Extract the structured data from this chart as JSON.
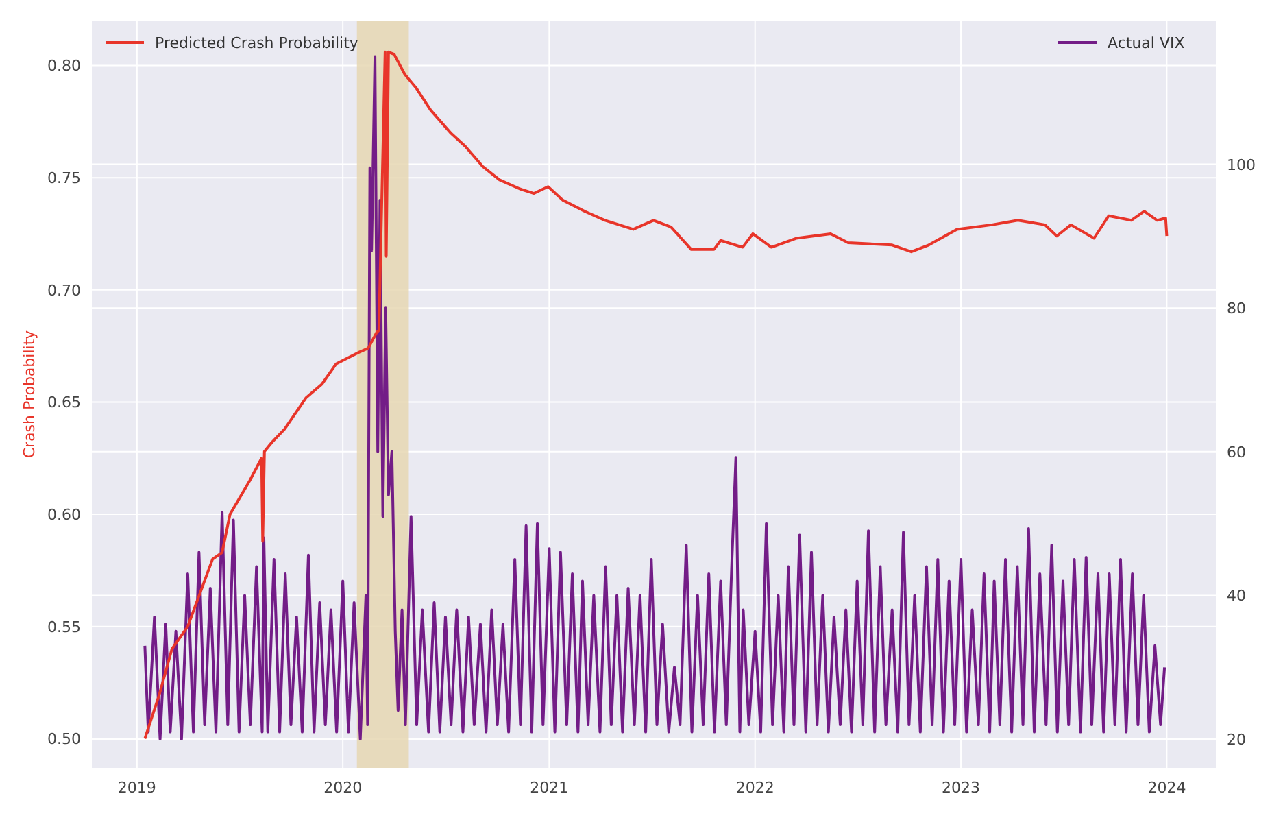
{
  "chart_data": {
    "type": "line",
    "ylabel": "Crash Probability",
    "xlim": [
      "2018-10-13",
      "2024-03-28"
    ],
    "xticks": [
      {
        "value": "2019-01-01",
        "label": "2019"
      },
      {
        "value": "2020-01-01",
        "label": "2020"
      },
      {
        "value": "2021-01-01",
        "label": "2021"
      },
      {
        "value": "2022-01-01",
        "label": "2022"
      },
      {
        "value": "2023-01-01",
        "label": "2023"
      },
      {
        "value": "2024-01-01",
        "label": "2024"
      }
    ],
    "ylim": [
      0.487,
      0.82
    ],
    "yticks": [
      {
        "value": 0.5,
        "label": "0.50"
      },
      {
        "value": 0.55,
        "label": "0.55"
      },
      {
        "value": 0.6,
        "label": "0.60"
      },
      {
        "value": 0.65,
        "label": "0.65"
      },
      {
        "value": 0.7,
        "label": "0.70"
      },
      {
        "value": 0.75,
        "label": "0.75"
      },
      {
        "value": 0.8,
        "label": "0.80"
      }
    ],
    "y2lim": [
      16,
      120
    ],
    "y2ticks": [
      20,
      40,
      60,
      80,
      100
    ],
    "grid": true,
    "legend": "top",
    "line_style": "solid",
    "bands": [
      {
        "axis": "x",
        "from": "2020-01-26",
        "to": "2020-04-27",
        "color": "#e6d7b3"
      }
    ],
    "series": [
      {
        "name": "Actual VIX",
        "color": "#731d87",
        "axis": "y2",
        "x": [
          "2019-01-15",
          "2019-01-21",
          "2019-02-01",
          "2019-02-11",
          "2019-02-21",
          "2019-03-01",
          "2019-03-11",
          "2019-03-21",
          "2019-04-01",
          "2019-04-11",
          "2019-04-21",
          "2019-05-01",
          "2019-05-11",
          "2019-05-21",
          "2019-06-01",
          "2019-06-11",
          "2019-06-21",
          "2019-07-01",
          "2019-07-11",
          "2019-07-21",
          "2019-08-01",
          "2019-08-11",
          "2019-08-14",
          "2019-08-21",
          "2019-09-01",
          "2019-09-11",
          "2019-09-21",
          "2019-10-01",
          "2019-10-11",
          "2019-10-21",
          "2019-11-01",
          "2019-11-11",
          "2019-11-21",
          "2019-12-01",
          "2019-12-11",
          "2019-12-21",
          "2020-01-01",
          "2020-01-11",
          "2020-01-21",
          "2020-02-01",
          "2020-02-11",
          "2020-02-14",
          "2020-02-18",
          "2020-02-21",
          "2020-02-27",
          "2020-03-03",
          "2020-03-07",
          "2020-03-12",
          "2020-03-17",
          "2020-03-22",
          "2020-03-28",
          "2020-04-03",
          "2020-04-08",
          "2020-04-15",
          "2020-04-21",
          "2020-05-01",
          "2020-05-11",
          "2020-05-21",
          "2020-06-01",
          "2020-06-11",
          "2020-06-21",
          "2020-07-01",
          "2020-07-11",
          "2020-07-21",
          "2020-08-01",
          "2020-08-11",
          "2020-08-21",
          "2020-09-01",
          "2020-09-11",
          "2020-09-21",
          "2020-10-01",
          "2020-10-11",
          "2020-10-21",
          "2020-11-01",
          "2020-11-11",
          "2020-11-21",
          "2020-12-01",
          "2020-12-11",
          "2020-12-21",
          "2021-01-01",
          "2021-01-11",
          "2021-01-21",
          "2021-02-01",
          "2021-02-11",
          "2021-02-21",
          "2021-03-01",
          "2021-03-11",
          "2021-03-21",
          "2021-04-01",
          "2021-04-11",
          "2021-04-21",
          "2021-05-01",
          "2021-05-11",
          "2021-05-21",
          "2021-06-01",
          "2021-06-11",
          "2021-06-21",
          "2021-07-01",
          "2021-07-11",
          "2021-07-21",
          "2021-08-01",
          "2021-08-11",
          "2021-08-21",
          "2021-09-01",
          "2021-09-11",
          "2021-09-21",
          "2021-10-01",
          "2021-10-11",
          "2021-10-21",
          "2021-11-01",
          "2021-11-11",
          "2021-11-21",
          "2021-11-28",
          "2021-12-05",
          "2021-12-11",
          "2021-12-21",
          "2022-01-01",
          "2022-01-11",
          "2022-01-21",
          "2022-02-01",
          "2022-02-11",
          "2022-02-21",
          "2022-03-01",
          "2022-03-11",
          "2022-03-21",
          "2022-04-01",
          "2022-04-11",
          "2022-04-21",
          "2022-05-01",
          "2022-05-11",
          "2022-05-21",
          "2022-06-01",
          "2022-06-11",
          "2022-06-21",
          "2022-07-01",
          "2022-07-11",
          "2022-07-21",
          "2022-08-01",
          "2022-08-11",
          "2022-08-21",
          "2022-09-01",
          "2022-09-11",
          "2022-09-21",
          "2022-10-01",
          "2022-10-11",
          "2022-10-21",
          "2022-11-01",
          "2022-11-11",
          "2022-11-21",
          "2022-12-01",
          "2022-12-11",
          "2022-12-21",
          "2023-01-01",
          "2023-01-11",
          "2023-01-21",
          "2023-02-01",
          "2023-02-11",
          "2023-02-21",
          "2023-03-01",
          "2023-03-11",
          "2023-03-21",
          "2023-04-01",
          "2023-04-11",
          "2023-04-21",
          "2023-05-01",
          "2023-05-11",
          "2023-05-21",
          "2023-06-01",
          "2023-06-11",
          "2023-06-21",
          "2023-07-01",
          "2023-07-11",
          "2023-07-21",
          "2023-08-01",
          "2023-08-11",
          "2023-08-21",
          "2023-09-01",
          "2023-09-11",
          "2023-09-21",
          "2023-10-01",
          "2023-10-11",
          "2023-10-21",
          "2023-11-01",
          "2023-11-11",
          "2023-11-21",
          "2023-12-01",
          "2023-12-11",
          "2023-12-21",
          "2023-12-28"
        ],
        "values": [
          33,
          21,
          37,
          20,
          36,
          21,
          35,
          20,
          43,
          21,
          46,
          22,
          41,
          21,
          51.6,
          22,
          50.5,
          21,
          40,
          22,
          44,
          21,
          48,
          21,
          45,
          21,
          43,
          22,
          37,
          21,
          45.6,
          21,
          39,
          22,
          38,
          21,
          42,
          21,
          39,
          20,
          40,
          22,
          99.5,
          88,
          115,
          60,
          95,
          51,
          80,
          54,
          60,
          35,
          24,
          38,
          22,
          51,
          22,
          38,
          21,
          39,
          21,
          37,
          22,
          38,
          21,
          37,
          22,
          36,
          21,
          38,
          22,
          36,
          21,
          45,
          22,
          49.7,
          21,
          50,
          22,
          46.5,
          21,
          46,
          22,
          43,
          21,
          42,
          22,
          40,
          21,
          44,
          22,
          40,
          21,
          41,
          22,
          40,
          21,
          45,
          22,
          36,
          21,
          30,
          22,
          47,
          21,
          40,
          22,
          43,
          21,
          42,
          22,
          45,
          59.2,
          21,
          38,
          22,
          35,
          21,
          50,
          22,
          40,
          21,
          44,
          22,
          48.4,
          21,
          46,
          22,
          40,
          21,
          37,
          22,
          38,
          21,
          42,
          22,
          49,
          21,
          44,
          22,
          38,
          21,
          48.8,
          22,
          40,
          21,
          44,
          22,
          45,
          21,
          42,
          22,
          45,
          21,
          38,
          22,
          43,
          21,
          42,
          22,
          45,
          21,
          44,
          22,
          49.3,
          21,
          43,
          22,
          47,
          21,
          42,
          22,
          45,
          21,
          45.3,
          22,
          43,
          21,
          43,
          22,
          45,
          21,
          43,
          22,
          40,
          21,
          33,
          22,
          30
        ]
      },
      {
        "name": "Predicted Crash Probability",
        "color": "#e8352a",
        "x": [
          "2019-01-15",
          "2019-02-10",
          "2019-03-04",
          "2019-04-01",
          "2019-05-15",
          "2019-06-01",
          "2019-06-15",
          "2019-07-20",
          "2019-08-10",
          "2019-08-12",
          "2019-08-15",
          "2019-08-28",
          "2019-09-20",
          "2019-10-28",
          "2019-11-25",
          "2019-12-20",
          "2020-01-28",
          "2020-02-15",
          "2020-03-01",
          "2020-03-05",
          "2020-03-16",
          "2020-03-18",
          "2020-03-22",
          "2020-04-01",
          "2020-04-20",
          "2020-05-10",
          "2020-06-05",
          "2020-07-10",
          "2020-08-05",
          "2020-09-05",
          "2020-10-05",
          "2020-11-10",
          "2020-12-05",
          "2020-12-30",
          "2021-01-25",
          "2021-03-05",
          "2021-04-10",
          "2021-05-05",
          "2021-05-30",
          "2021-07-05",
          "2021-08-05",
          "2021-09-10",
          "2021-10-20",
          "2021-11-01",
          "2021-12-10",
          "2021-12-28",
          "2022-01-30",
          "2022-03-15",
          "2022-05-15",
          "2022-06-15",
          "2022-09-01",
          "2022-10-05",
          "2022-11-05",
          "2022-12-25",
          "2023-02-25",
          "2023-04-12",
          "2023-05-30",
          "2023-06-20",
          "2023-07-15",
          "2023-08-25",
          "2023-09-20",
          "2023-10-30",
          "2023-11-22",
          "2023-12-15",
          "2023-12-30",
          "2024-01-01"
        ],
        "values": [
          0.5,
          0.52,
          0.54,
          0.55,
          0.58,
          0.583,
          0.6,
          0.615,
          0.625,
          0.588,
          0.628,
          0.632,
          0.638,
          0.652,
          0.658,
          0.667,
          0.672,
          0.674,
          0.681,
          0.682,
          0.806,
          0.715,
          0.806,
          0.805,
          0.796,
          0.79,
          0.78,
          0.77,
          0.764,
          0.755,
          0.749,
          0.745,
          0.743,
          0.746,
          0.74,
          0.735,
          0.731,
          0.729,
          0.727,
          0.731,
          0.728,
          0.718,
          0.718,
          0.722,
          0.719,
          0.725,
          0.719,
          0.723,
          0.725,
          0.721,
          0.72,
          0.717,
          0.72,
          0.727,
          0.729,
          0.731,
          0.729,
          0.724,
          0.729,
          0.723,
          0.733,
          0.731,
          0.735,
          0.731,
          0.732,
          0.724
        ]
      }
    ]
  }
}
